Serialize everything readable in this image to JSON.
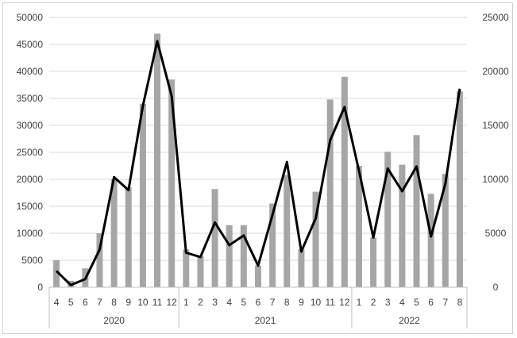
{
  "chart_data": {
    "type": "bar+line",
    "title": "",
    "xlabel": "",
    "ylabel": "",
    "categories": [
      "4",
      "5",
      "6",
      "7",
      "8",
      "9",
      "10",
      "11",
      "12",
      "1",
      "2",
      "3",
      "4",
      "5",
      "6",
      "7",
      "8",
      "9",
      "10",
      "11",
      "12",
      "1",
      "2",
      "3",
      "4",
      "5",
      "6",
      "7",
      "8"
    ],
    "groups": [
      {
        "label": "2020",
        "count": 9
      },
      {
        "label": "2021",
        "count": 12
      },
      {
        "label": "2022",
        "count": 8
      }
    ],
    "series": [
      {
        "type": "bar",
        "axis": "left",
        "color": "#a6a6a6",
        "values": [
          5000,
          1200,
          3500,
          10000,
          20000,
          18500,
          34000,
          47000,
          38500,
          7000,
          5800,
          18200,
          11500,
          11500,
          4000,
          15500,
          20800,
          7000,
          17700,
          34800,
          39000,
          22500,
          9200,
          25100,
          22700,
          28200,
          17300,
          21000,
          36300
        ]
      },
      {
        "type": "line",
        "axis": "right",
        "color": "#000000",
        "values": [
          1500,
          200,
          750,
          3500,
          10200,
          9000,
          16800,
          22800,
          17700,
          3200,
          2800,
          6000,
          3900,
          4800,
          2000,
          6700,
          11600,
          3300,
          6400,
          13600,
          16700,
          10800,
          4600,
          11000,
          8900,
          11200,
          4700,
          9600,
          18400
        ]
      }
    ],
    "y_left": {
      "min": 0,
      "max": 50000,
      "ticks": [
        "0",
        "5000",
        "10000",
        "15000",
        "20000",
        "25000",
        "30000",
        "35000",
        "40000",
        "45000",
        "50000"
      ]
    },
    "y_right": {
      "min": 0,
      "max": 25000,
      "ticks": [
        "0",
        "5000",
        "10000",
        "15000",
        "20000",
        "25000"
      ]
    },
    "grid": true,
    "legend": "none"
  }
}
